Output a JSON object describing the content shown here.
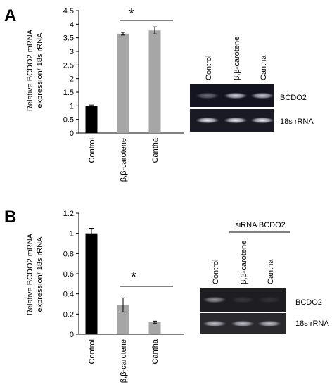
{
  "panels": [
    {
      "letter": "A",
      "chart_data": {
        "type": "bar",
        "categories": [
          "Control",
          "β,β-carotene",
          "Cantha"
        ],
        "values": [
          1.0,
          3.65,
          3.77
        ],
        "errors": [
          0.03,
          0.05,
          0.13
        ],
        "colors": [
          "#000000",
          "#a6a6a6",
          "#a6a6a6"
        ],
        "ylim": [
          0,
          4.5
        ],
        "yticks": [
          0,
          0.5,
          1,
          1.5,
          2,
          2.5,
          3,
          3.5,
          4,
          4.5
        ],
        "ytick_labels": [
          "0",
          "0.5",
          "1",
          "1.5",
          "2",
          "2.5",
          "3",
          "3.5",
          "4",
          "4.5"
        ],
        "ylabel_line1": "Relative BCDO2 mRNA",
        "ylabel_line2": "expression/ 18s rRNA",
        "significance": "*",
        "grid": false
      },
      "gel": {
        "lanes": [
          "Control",
          "β,β-carotene",
          "Cantha"
        ],
        "band_labels": [
          "BCDO2",
          "18s rRNA"
        ],
        "bcdo2_intensity": [
          0.4,
          0.85,
          0.8
        ],
        "rrna_intensity": [
          0.95,
          0.95,
          0.95
        ]
      }
    },
    {
      "letter": "B",
      "chart_data": {
        "type": "bar",
        "categories": [
          "Control",
          "β,β-carotene",
          "Cantha"
        ],
        "values": [
          1.0,
          0.29,
          0.12
        ],
        "errors": [
          0.05,
          0.07,
          0.01
        ],
        "colors": [
          "#000000",
          "#a6a6a6",
          "#a6a6a6"
        ],
        "ylim": [
          0,
          1.2
        ],
        "yticks": [
          0,
          0.2,
          0.4,
          0.6,
          0.8,
          1,
          1.2
        ],
        "ytick_labels": [
          "0",
          "0.2",
          "0.4",
          "0.6",
          "0.8",
          "1",
          "1.2"
        ],
        "ylabel_line1": "Relative BCDO2 mRNA",
        "ylabel_line2": "expression/ 18s rRNA",
        "significance": "*",
        "grid": false
      },
      "gel": {
        "header": "siRNA BCDO2",
        "lanes": [
          "Control",
          "β,β-carotene",
          "Cantha"
        ],
        "band_labels": [
          "BCDO2",
          "18s rRNA"
        ],
        "bcdo2_intensity": [
          0.55,
          0.12,
          0.1
        ],
        "rrna_intensity": [
          0.75,
          0.75,
          0.75
        ]
      }
    }
  ]
}
